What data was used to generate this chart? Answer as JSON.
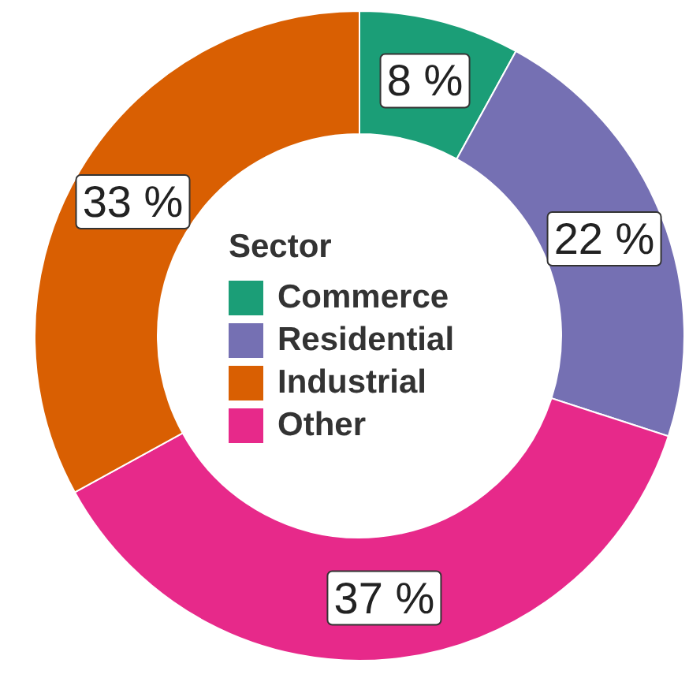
{
  "chart_data": {
    "type": "donut",
    "legend_title": "Sector",
    "legend": "center",
    "categories": [
      "Commerce",
      "Residential",
      "Other",
      "Industrial"
    ],
    "values": [
      8,
      22,
      37,
      33
    ],
    "colors": [
      "#1b9e77",
      "#7570b3",
      "#e7298a",
      "#d95f02"
    ],
    "value_labels": [
      "8 %",
      "22 %",
      "37 %",
      "33 %"
    ]
  }
}
